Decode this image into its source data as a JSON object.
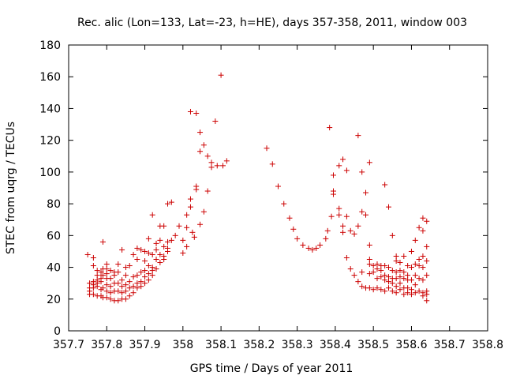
{
  "chart_data": {
    "type": "scatter",
    "title": "Rec. alic (Lon=133, Lat=-23, h=HE), days 357-358, 2011, window 003",
    "xlabel": "GPS time / Days of year 2011",
    "ylabel": "STEC from uqrg / TECUs",
    "xlim": [
      357.7,
      358.8
    ],
    "ylim": [
      0,
      180
    ],
    "xticks": [
      "357.7",
      "357.8",
      "357.9",
      "358",
      "358.1",
      "358.2",
      "358.3",
      "358.4",
      "358.5",
      "358.6",
      "358.7",
      "358.8"
    ],
    "yticks": [
      "0",
      "20",
      "40",
      "60",
      "80",
      "100",
      "120",
      "140",
      "160",
      "180"
    ],
    "xtick_values": [
      357.7,
      357.8,
      357.9,
      358.0,
      358.1,
      358.2,
      358.3,
      358.4,
      358.5,
      358.6,
      358.7,
      358.8
    ],
    "ytick_values": [
      0,
      20,
      40,
      60,
      80,
      100,
      120,
      140,
      160,
      180
    ],
    "grid": false,
    "marker": "plus",
    "color": "#cc0000",
    "series": [
      {
        "points": [
          [
            357.75,
            48
          ],
          [
            357.755,
            30
          ],
          [
            357.755,
            27
          ],
          [
            357.755,
            25
          ],
          [
            357.755,
            23
          ],
          [
            357.765,
            46
          ],
          [
            357.765,
            41
          ],
          [
            357.765,
            31
          ],
          [
            357.765,
            29
          ],
          [
            357.765,
            27
          ],
          [
            357.765,
            23
          ],
          [
            357.775,
            38
          ],
          [
            357.775,
            35
          ],
          [
            357.775,
            32
          ],
          [
            357.775,
            30
          ],
          [
            357.775,
            28
          ],
          [
            357.775,
            22
          ],
          [
            357.785,
            37
          ],
          [
            357.785,
            33
          ],
          [
            357.785,
            31
          ],
          [
            357.785,
            26
          ],
          [
            357.785,
            22
          ],
          [
            357.79,
            56
          ],
          [
            357.79,
            39
          ],
          [
            357.79,
            35
          ],
          [
            357.79,
            27
          ],
          [
            357.79,
            21
          ],
          [
            357.8,
            42
          ],
          [
            357.8,
            39
          ],
          [
            357.8,
            36
          ],
          [
            357.8,
            33
          ],
          [
            357.8,
            29
          ],
          [
            357.8,
            25
          ],
          [
            357.8,
            21
          ],
          [
            357.81,
            38
          ],
          [
            357.81,
            33
          ],
          [
            357.81,
            28
          ],
          [
            357.81,
            24
          ],
          [
            357.81,
            20
          ],
          [
            357.82,
            37
          ],
          [
            357.82,
            35
          ],
          [
            357.82,
            30
          ],
          [
            357.82,
            25
          ],
          [
            357.82,
            19
          ],
          [
            357.83,
            42
          ],
          [
            357.83,
            37
          ],
          [
            357.83,
            30
          ],
          [
            357.83,
            25
          ],
          [
            357.83,
            19
          ],
          [
            357.84,
            51
          ],
          [
            357.84,
            32
          ],
          [
            357.84,
            28
          ],
          [
            357.84,
            24
          ],
          [
            357.84,
            20
          ],
          [
            357.85,
            40
          ],
          [
            357.85,
            35
          ],
          [
            357.85,
            29
          ],
          [
            357.85,
            25
          ],
          [
            357.85,
            20
          ],
          [
            357.86,
            41
          ],
          [
            357.86,
            31
          ],
          [
            357.86,
            27
          ],
          [
            357.86,
            22
          ],
          [
            357.87,
            48
          ],
          [
            357.87,
            34
          ],
          [
            357.87,
            28
          ],
          [
            357.87,
            24
          ],
          [
            357.88,
            52
          ],
          [
            357.88,
            45
          ],
          [
            357.88,
            35
          ],
          [
            357.88,
            30
          ],
          [
            357.88,
            27
          ],
          [
            357.89,
            51
          ],
          [
            357.89,
            37
          ],
          [
            357.89,
            31
          ],
          [
            357.89,
            28
          ],
          [
            357.9,
            50
          ],
          [
            357.9,
            44
          ],
          [
            357.9,
            38
          ],
          [
            357.9,
            34
          ],
          [
            357.9,
            30
          ],
          [
            357.91,
            58
          ],
          [
            357.91,
            49
          ],
          [
            357.91,
            41
          ],
          [
            357.91,
            36
          ],
          [
            357.91,
            32
          ],
          [
            357.92,
            73
          ],
          [
            357.92,
            48
          ],
          [
            357.92,
            40
          ],
          [
            357.92,
            38
          ],
          [
            357.92,
            35
          ],
          [
            357.93,
            55
          ],
          [
            357.93,
            51
          ],
          [
            357.93,
            45
          ],
          [
            357.93,
            39
          ],
          [
            357.94,
            66
          ],
          [
            357.94,
            57
          ],
          [
            357.94,
            48
          ],
          [
            357.94,
            43
          ],
          [
            357.95,
            66
          ],
          [
            357.95,
            53
          ],
          [
            357.95,
            47
          ],
          [
            357.95,
            45
          ],
          [
            357.96,
            80
          ],
          [
            357.96,
            56
          ],
          [
            357.96,
            52
          ],
          [
            357.96,
            50
          ],
          [
            357.97,
            81
          ],
          [
            357.97,
            57
          ],
          [
            357.98,
            60
          ],
          [
            357.99,
            66
          ],
          [
            358.0,
            57
          ],
          [
            358.0,
            49
          ],
          [
            358.01,
            73
          ],
          [
            358.01,
            65
          ],
          [
            358.01,
            53
          ],
          [
            358.02,
            138
          ],
          [
            358.02,
            83
          ],
          [
            358.02,
            78
          ],
          [
            358.025,
            62
          ],
          [
            358.03,
            59
          ],
          [
            358.035,
            137
          ],
          [
            358.035,
            91
          ],
          [
            358.035,
            89
          ],
          [
            358.045,
            125
          ],
          [
            358.045,
            113
          ],
          [
            358.045,
            67
          ],
          [
            358.055,
            117
          ],
          [
            358.055,
            75
          ],
          [
            358.065,
            110
          ],
          [
            358.065,
            88
          ],
          [
            358.075,
            106
          ],
          [
            358.075,
            103
          ],
          [
            358.085,
            132
          ],
          [
            358.09,
            104
          ],
          [
            358.1,
            161
          ],
          [
            358.105,
            104
          ],
          [
            358.115,
            107
          ],
          [
            358.22,
            115
          ],
          [
            358.235,
            105
          ],
          [
            358.25,
            91
          ],
          [
            358.265,
            80
          ],
          [
            358.28,
            71
          ],
          [
            358.29,
            64
          ],
          [
            358.3,
            58
          ],
          [
            358.315,
            54
          ],
          [
            358.33,
            52
          ],
          [
            358.34,
            51
          ],
          [
            358.35,
            52
          ],
          [
            358.36,
            54
          ],
          [
            358.375,
            58
          ],
          [
            358.38,
            63
          ],
          [
            358.385,
            128
          ],
          [
            358.39,
            72
          ],
          [
            358.395,
            98
          ],
          [
            358.395,
            88
          ],
          [
            358.395,
            86
          ],
          [
            358.41,
            104
          ],
          [
            358.41,
            77
          ],
          [
            358.41,
            73
          ],
          [
            358.42,
            108
          ],
          [
            358.42,
            66
          ],
          [
            358.42,
            62
          ],
          [
            358.43,
            101
          ],
          [
            358.43,
            72
          ],
          [
            358.43,
            46
          ],
          [
            358.44,
            63
          ],
          [
            358.44,
            39
          ],
          [
            358.45,
            61
          ],
          [
            358.45,
            35
          ],
          [
            358.46,
            123
          ],
          [
            358.46,
            66
          ],
          [
            358.46,
            31
          ],
          [
            358.47,
            100
          ],
          [
            358.47,
            75
          ],
          [
            358.47,
            37
          ],
          [
            358.47,
            28
          ],
          [
            358.48,
            87
          ],
          [
            358.48,
            73
          ],
          [
            358.48,
            27
          ],
          [
            358.49,
            106
          ],
          [
            358.49,
            54
          ],
          [
            358.49,
            45
          ],
          [
            358.49,
            42
          ],
          [
            358.49,
            36
          ],
          [
            358.49,
            27
          ],
          [
            358.5,
            41
          ],
          [
            358.5,
            37
          ],
          [
            358.5,
            26
          ],
          [
            358.51,
            42
          ],
          [
            358.51,
            39
          ],
          [
            358.51,
            33
          ],
          [
            358.51,
            27
          ],
          [
            358.52,
            41
          ],
          [
            358.52,
            38
          ],
          [
            358.52,
            34
          ],
          [
            358.52,
            26
          ],
          [
            358.53,
            92
          ],
          [
            358.53,
            41
          ],
          [
            358.53,
            35
          ],
          [
            358.53,
            32
          ],
          [
            358.53,
            25
          ],
          [
            358.54,
            78
          ],
          [
            358.54,
            40
          ],
          [
            358.54,
            34
          ],
          [
            358.54,
            31
          ],
          [
            358.54,
            27
          ],
          [
            358.55,
            60
          ],
          [
            358.55,
            38
          ],
          [
            358.55,
            33
          ],
          [
            358.55,
            30
          ],
          [
            358.55,
            25
          ],
          [
            358.56,
            47
          ],
          [
            358.56,
            44
          ],
          [
            358.56,
            37
          ],
          [
            358.56,
            33
          ],
          [
            358.56,
            28
          ],
          [
            358.56,
            24
          ],
          [
            358.57,
            43
          ],
          [
            358.57,
            38
          ],
          [
            358.57,
            34
          ],
          [
            358.57,
            30
          ],
          [
            358.57,
            26
          ],
          [
            358.58,
            47
          ],
          [
            358.58,
            37
          ],
          [
            358.58,
            33
          ],
          [
            358.58,
            27
          ],
          [
            358.58,
            23
          ],
          [
            358.59,
            41
          ],
          [
            358.59,
            35
          ],
          [
            358.59,
            32
          ],
          [
            358.59,
            27
          ],
          [
            358.59,
            24
          ],
          [
            358.6,
            50
          ],
          [
            358.6,
            40
          ],
          [
            358.6,
            32
          ],
          [
            358.6,
            26
          ],
          [
            358.6,
            23
          ],
          [
            358.61,
            57
          ],
          [
            358.61,
            42
          ],
          [
            358.61,
            35
          ],
          [
            358.61,
            29
          ],
          [
            358.61,
            24
          ],
          [
            358.62,
            65
          ],
          [
            358.62,
            45
          ],
          [
            358.62,
            41
          ],
          [
            358.62,
            33
          ],
          [
            358.62,
            25
          ],
          [
            358.63,
            71
          ],
          [
            358.63,
            63
          ],
          [
            358.63,
            47
          ],
          [
            358.63,
            40
          ],
          [
            358.63,
            32
          ],
          [
            358.63,
            24
          ],
          [
            358.63,
            22
          ],
          [
            358.64,
            69
          ],
          [
            358.64,
            53
          ],
          [
            358.64,
            44
          ],
          [
            358.64,
            35
          ],
          [
            358.64,
            25
          ],
          [
            358.64,
            23
          ],
          [
            358.64,
            19
          ]
        ]
      }
    ]
  }
}
